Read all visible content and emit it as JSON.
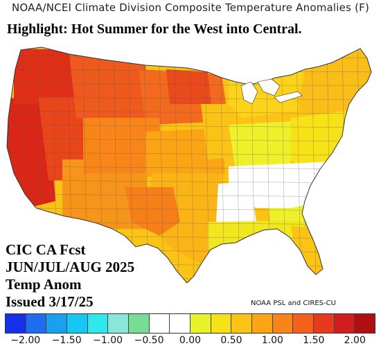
{
  "title": "NOAA/NCEI Climate Division Composite Temperature Anomalies (F)",
  "highlight": "Highlight: Hot Summer for the West into Central.",
  "forecast_block": {
    "line1": "CIC CA Fcst",
    "line2": "JUN/JUL/AUG 2025",
    "line3": "Temp Anom",
    "line4": "Issued 3/17/25"
  },
  "credit": "NOAA PSL and CIRES-CU",
  "legend": {
    "colors": [
      "#1530e6",
      "#1e6cf0",
      "#1aa0f0",
      "#18c6f2",
      "#2ee8ec",
      "#8ae6d8",
      "#78dc92",
      "#ffffff",
      "#ffffff",
      "#e8f22a",
      "#f6e216",
      "#fbc316",
      "#fba414",
      "#f7851a",
      "#f2621c",
      "#e8381e",
      "#d01e1e",
      "#b00e12"
    ],
    "ticks": [
      {
        "label": "−2.00",
        "value": -2.0
      },
      {
        "label": "−1.50",
        "value": -1.5
      },
      {
        "label": "−1.00",
        "value": -1.0
      },
      {
        "label": "−0.50",
        "value": -0.5
      },
      {
        "label": "0.00",
        "value": 0.0
      },
      {
        "label": "0.50",
        "value": 0.5
      },
      {
        "label": "1.00",
        "value": 1.0
      },
      {
        "label": "1.50",
        "value": 1.5
      },
      {
        "label": "2.00",
        "value": 2.0
      }
    ],
    "min": -2.25,
    "max": 2.25
  },
  "map_regions": [
    {
      "name": "west-coast",
      "anomaly": 2.0,
      "color": "#d92616"
    },
    {
      "name": "pacific-northwest",
      "anomaly": 1.9,
      "color": "#df2f17"
    },
    {
      "name": "great-basin",
      "anomaly": 1.7,
      "color": "#e9451b"
    },
    {
      "name": "northern-rockies",
      "anomaly": 1.6,
      "color": "#ee5a1d"
    },
    {
      "name": "northern-plains",
      "anomaly": 1.5,
      "color": "#f26a1d"
    },
    {
      "name": "dakotas-core",
      "anomaly": 1.7,
      "color": "#e84a1c"
    },
    {
      "name": "southwest",
      "anomaly": 1.1,
      "color": "#f7951a"
    },
    {
      "name": "central-rockies",
      "anomaly": 1.2,
      "color": "#f98519"
    },
    {
      "name": "central-plains",
      "anomaly": 1.0,
      "color": "#fba414"
    },
    {
      "name": "southern-plains",
      "anomaly": 0.9,
      "color": "#fbb416"
    },
    {
      "name": "west-texas",
      "anomaly": 1.3,
      "color": "#f77f19"
    },
    {
      "name": "midwest",
      "anomaly": 0.7,
      "color": "#fbc316"
    },
    {
      "name": "great-lakes",
      "anomaly": 0.6,
      "color": "#fcd21a"
    },
    {
      "name": "northeast",
      "anomaly": 0.8,
      "color": "#fbbd17"
    },
    {
      "name": "mid-atlantic",
      "anomaly": 0.5,
      "color": "#f6e216"
    },
    {
      "name": "ohio-valley",
      "anomaly": 0.4,
      "color": "#eef02a"
    },
    {
      "name": "southeast",
      "anomaly": 0.4,
      "color": "#eef02a"
    },
    {
      "name": "tennessee-valley",
      "anomaly": 0.0,
      "color": "#ffffff"
    },
    {
      "name": "mississippi-valley",
      "anomaly": 0.1,
      "color": "#ffffff"
    },
    {
      "name": "gulf-coast",
      "anomaly": 0.5,
      "color": "#f2e61e"
    },
    {
      "name": "florida",
      "anomaly": 0.7,
      "color": "#fbc316"
    }
  ]
}
